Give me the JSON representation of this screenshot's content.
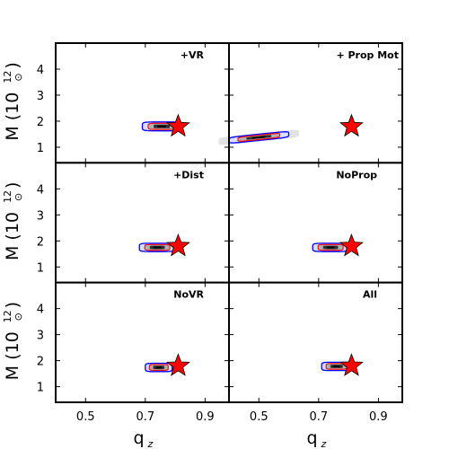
{
  "chart_data": {
    "type": "scatter",
    "layout": "3 rows x 2 columns, shared axes",
    "xlabel": "q",
    "xlabel_sub": "z",
    "ylabel": "M (10",
    "ylabel_sup": "12",
    "ylabel_sub": "⊙",
    "ylabel_close": ")",
    "xlim": [
      0.4,
      0.98
    ],
    "ylim": [
      0.4,
      5.0
    ],
    "xticks": [
      "0.5",
      "0.7",
      "0.9"
    ],
    "xtick_values": [
      0.5,
      0.7,
      0.9
    ],
    "yticks": [
      "1",
      "2",
      "3",
      "4"
    ],
    "ytick_values": [
      1,
      2,
      3,
      4
    ],
    "true_value": {
      "x": 0.81,
      "y": 1.8,
      "marker": "star",
      "color": "#ff0000"
    },
    "contour_colors": {
      "outer": "#0000ff",
      "inner": "#ff0000",
      "core": "#000000"
    },
    "panels": [
      {
        "label": "+VR",
        "row": 0,
        "col": 0,
        "posterior": {
          "x_range": [
            0.69,
            0.82
          ],
          "y_center": 1.8,
          "y_halfwidth": 0.17,
          "tilt": 0.0
        }
      },
      {
        "label": "+ Prop Mot",
        "row": 0,
        "col": 1,
        "posterior": {
          "x_range": [
            0.4,
            0.6
          ],
          "y_center": 1.38,
          "y_halfwidth": 0.12,
          "tilt": 1.2
        }
      },
      {
        "label": "+Dist",
        "row": 1,
        "col": 0,
        "posterior": {
          "x_range": [
            0.68,
            0.8
          ],
          "y_center": 1.75,
          "y_halfwidth": 0.16,
          "tilt": 0.0
        }
      },
      {
        "label": "NoProp",
        "row": 1,
        "col": 1,
        "posterior": {
          "x_range": [
            0.68,
            0.8
          ],
          "y_center": 1.75,
          "y_halfwidth": 0.16,
          "tilt": 0.0
        }
      },
      {
        "label": "NoVR",
        "row": 2,
        "col": 0,
        "posterior": {
          "x_range": [
            0.7,
            0.79
          ],
          "y_center": 1.74,
          "y_halfwidth": 0.16,
          "tilt": 0.0
        }
      },
      {
        "label": "All",
        "row": 2,
        "col": 1,
        "posterior": {
          "x_range": [
            0.71,
            0.81
          ],
          "y_center": 1.78,
          "y_halfwidth": 0.16,
          "tilt": 0.0
        }
      }
    ]
  }
}
